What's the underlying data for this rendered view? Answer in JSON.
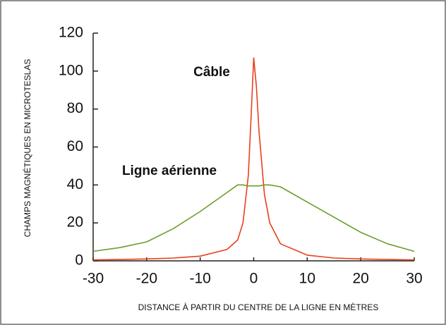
{
  "chart_data": {
    "type": "line",
    "x_label": "DISTANCE À PARTIR DU CENTRE DE LA LIGNE EN MÈTRES",
    "y_label": "CHAMPS MAGNÉTIQUES EN MICROTESLAS",
    "x": [
      -30,
      -25,
      -20,
      -15,
      -10,
      -5,
      -3,
      -2,
      -1,
      -0.5,
      0,
      0.5,
      1,
      2,
      3,
      5,
      10,
      15,
      20,
      25,
      30
    ],
    "series": [
      {
        "name": "Câble",
        "color": "#e8401c",
        "values": [
          0.5,
          0.7,
          1,
          1.5,
          2.5,
          6,
          11,
          20,
          45,
          75,
          107,
          92,
          68,
          35,
          20,
          9,
          3,
          1.5,
          1,
          0.7,
          0.5
        ]
      },
      {
        "name": "Ligne aérienne",
        "color": "#6a9e2a",
        "values": [
          5,
          7,
          10,
          17,
          26,
          36,
          40,
          40,
          39.5,
          39.5,
          39.5,
          39.5,
          39.5,
          40,
          40,
          39,
          31,
          23,
          15,
          9,
          5
        ]
      }
    ],
    "xlim": [
      -30,
      30
    ],
    "xticks": [
      -30,
      -20,
      -10,
      0,
      10,
      20,
      30
    ],
    "ylim": [
      0,
      120
    ],
    "yticks": [
      0,
      20,
      40,
      60,
      80,
      100,
      120
    ]
  }
}
